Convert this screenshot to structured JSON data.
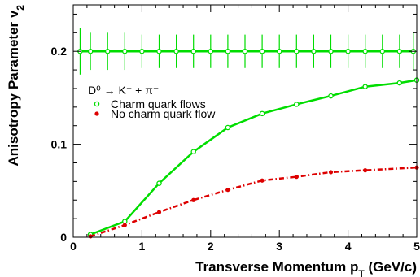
{
  "chart_data": {
    "type": "line",
    "title": "",
    "xlabel": "Transverse Momentum p_T (GeV/c)",
    "ylabel": "Anisotropy Parameter v_2",
    "xlim": [
      0,
      5
    ],
    "ylim": [
      0,
      0.25
    ],
    "x_ticks": [
      "0",
      "1",
      "2",
      "3",
      "4",
      "5"
    ],
    "y_ticks": [
      "0",
      "0.1",
      "0.2"
    ],
    "grid": false,
    "legend": {
      "placement": "upper-left",
      "header": "D⁰ → K⁺ + π⁻",
      "entries": [
        "Charm quark flows",
        "No charm quark flow"
      ]
    },
    "series": [
      {
        "name": "Charm quark flows",
        "color": "#00dd00",
        "marker": "open-circle",
        "line": "solid",
        "x": [
          0.25,
          0.75,
          1.25,
          1.75,
          2.25,
          2.75,
          3.25,
          3.75,
          4.25,
          4.75,
          5.0
        ],
        "y": [
          0.003,
          0.017,
          0.058,
          0.092,
          0.118,
          0.133,
          0.143,
          0.152,
          0.162,
          0.166,
          0.169
        ]
      },
      {
        "name": "No charm quark flow",
        "color": "#dd0000",
        "marker": "filled-circle",
        "line": "dash-dot",
        "x": [
          0.25,
          0.75,
          1.25,
          1.75,
          2.25,
          2.75,
          3.25,
          3.75,
          4.25,
          5.0
        ],
        "y": [
          0.001,
          0.013,
          0.027,
          0.04,
          0.051,
          0.061,
          0.065,
          0.07,
          0.072,
          0.075
        ]
      },
      {
        "name": "",
        "color": "#00dd00",
        "marker": "open-circle",
        "line": "solid",
        "errors": true,
        "x": [
          0.1,
          0.25,
          0.5,
          0.75,
          1.0,
          1.25,
          1.5,
          1.75,
          2.0,
          2.25,
          2.5,
          2.75,
          3.0,
          3.25,
          3.5,
          3.75,
          4.0,
          4.25,
          4.5,
          4.75,
          4.95
        ],
        "y": [
          0.2,
          0.2,
          0.2,
          0.2,
          0.2,
          0.2,
          0.2,
          0.2,
          0.2,
          0.2,
          0.2,
          0.2,
          0.2,
          0.2,
          0.2,
          0.2,
          0.2,
          0.2,
          0.2,
          0.2,
          0.2
        ],
        "err": [
          0.025,
          0.02,
          0.02,
          0.02,
          0.018,
          0.018,
          0.018,
          0.018,
          0.018,
          0.018,
          0.018,
          0.018,
          0.018,
          0.018,
          0.018,
          0.018,
          0.018,
          0.018,
          0.018,
          0.018,
          0.02
        ]
      }
    ]
  }
}
